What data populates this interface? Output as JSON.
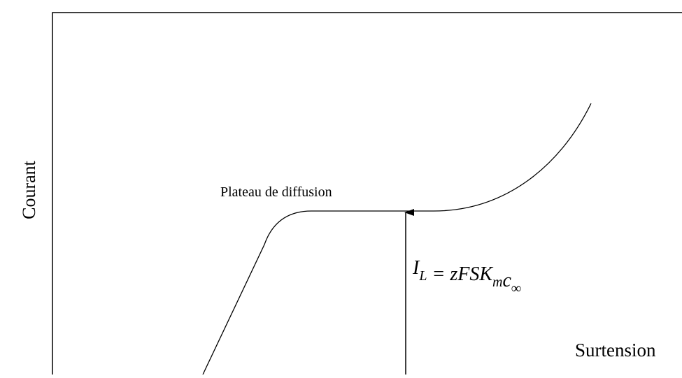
{
  "y_axis_label": "Courant",
  "x_axis_label": "Surtension",
  "plateau_label": "Plateau de diffusion",
  "formula": [
    {
      "text": "I",
      "sub": "L"
    },
    {
      "text": " = zFSK",
      "sub": "m"
    },
    {
      "text": "c",
      "sub": "∞"
    }
  ]
}
